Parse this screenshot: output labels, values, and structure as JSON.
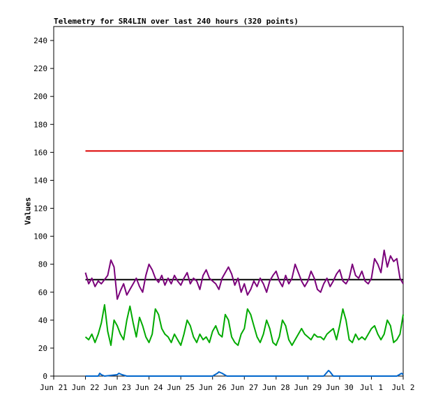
{
  "chart_data": {
    "type": "line",
    "title": "Telemetry for SR4LIN over last 240 hours (320 points)",
    "xlabel": "",
    "ylabel": "Values",
    "ylim": [
      0,
      250
    ],
    "xlim": [
      0,
      11
    ],
    "x_tick_labels": [
      "Jun 21",
      "Jun 22",
      "Jun 23",
      "Jun 24",
      "Jun 25",
      "Jun 26",
      "Jun 27",
      "Jun 28",
      "Jun 29",
      "Jun 30",
      "Jul 1",
      "Jul 2"
    ],
    "y_tick_values": [
      0,
      20,
      40,
      60,
      80,
      100,
      120,
      140,
      160,
      180,
      200,
      220,
      240
    ],
    "grid": false,
    "legend": "none",
    "series": [
      {
        "color": "#dd0000",
        "x": [
          1,
          11
        ],
        "y": [
          161,
          161
        ]
      },
      {
        "color": "#000000",
        "x": [
          1,
          11
        ],
        "y": [
          69,
          69
        ]
      },
      {
        "color": "#7a007a",
        "x": [
          1.0,
          1.1,
          1.2,
          1.3,
          1.4,
          1.5,
          1.6,
          1.7,
          1.8,
          1.9,
          2.0,
          2.1,
          2.2,
          2.3,
          2.4,
          2.5,
          2.6,
          2.7,
          2.8,
          2.9,
          3.0,
          3.1,
          3.2,
          3.3,
          3.4,
          3.5,
          3.6,
          3.7,
          3.8,
          3.9,
          4.0,
          4.1,
          4.2,
          4.3,
          4.4,
          4.5,
          4.6,
          4.7,
          4.8,
          4.9,
          5.0,
          5.1,
          5.2,
          5.3,
          5.4,
          5.5,
          5.6,
          5.7,
          5.8,
          5.9,
          6.0,
          6.1,
          6.2,
          6.3,
          6.4,
          6.5,
          6.6,
          6.7,
          6.8,
          6.9,
          7.0,
          7.1,
          7.2,
          7.3,
          7.4,
          7.5,
          7.6,
          7.7,
          7.8,
          7.9,
          8.0,
          8.1,
          8.2,
          8.3,
          8.4,
          8.5,
          8.6,
          8.7,
          8.8,
          8.9,
          9.0,
          9.1,
          9.2,
          9.3,
          9.4,
          9.5,
          9.6,
          9.7,
          9.8,
          9.9,
          10.0,
          10.1,
          10.2,
          10.3,
          10.4,
          10.5,
          10.6,
          10.7,
          10.8,
          10.9,
          11.0
        ],
        "y": [
          74,
          66,
          70,
          64,
          68,
          66,
          69,
          72,
          83,
          78,
          55,
          61,
          66,
          58,
          62,
          66,
          70,
          64,
          60,
          72,
          80,
          76,
          70,
          67,
          72,
          65,
          70,
          66,
          72,
          68,
          65,
          70,
          74,
          66,
          70,
          68,
          62,
          72,
          76,
          70,
          68,
          66,
          62,
          70,
          74,
          78,
          73,
          65,
          70,
          60,
          66,
          58,
          62,
          68,
          64,
          70,
          66,
          60,
          68,
          72,
          75,
          68,
          64,
          72,
          66,
          70,
          80,
          74,
          68,
          64,
          68,
          75,
          70,
          62,
          60,
          66,
          70,
          64,
          68,
          73,
          76,
          68,
          66,
          70,
          80,
          72,
          70,
          75,
          68,
          66,
          70,
          84,
          80,
          74,
          90,
          78,
          86,
          82,
          84,
          70,
          66
        ]
      },
      {
        "color": "#00aa00",
        "x": [
          1.0,
          1.1,
          1.2,
          1.3,
          1.4,
          1.5,
          1.6,
          1.7,
          1.8,
          1.9,
          2.0,
          2.1,
          2.2,
          2.3,
          2.4,
          2.5,
          2.6,
          2.7,
          2.8,
          2.9,
          3.0,
          3.1,
          3.2,
          3.3,
          3.4,
          3.5,
          3.6,
          3.7,
          3.8,
          3.9,
          4.0,
          4.1,
          4.2,
          4.3,
          4.4,
          4.5,
          4.6,
          4.7,
          4.8,
          4.9,
          5.0,
          5.1,
          5.2,
          5.3,
          5.4,
          5.5,
          5.6,
          5.7,
          5.8,
          5.9,
          6.0,
          6.1,
          6.2,
          6.3,
          6.4,
          6.5,
          6.6,
          6.7,
          6.8,
          6.9,
          7.0,
          7.1,
          7.2,
          7.3,
          7.4,
          7.5,
          7.6,
          7.7,
          7.8,
          7.9,
          8.0,
          8.1,
          8.2,
          8.3,
          8.4,
          8.5,
          8.6,
          8.7,
          8.8,
          8.9,
          9.0,
          9.1,
          9.2,
          9.3,
          9.4,
          9.5,
          9.6,
          9.7,
          9.8,
          9.9,
          10.0,
          10.1,
          10.2,
          10.3,
          10.4,
          10.5,
          10.6,
          10.7,
          10.8,
          10.9,
          11.0
        ],
        "y": [
          28,
          26,
          30,
          24,
          30,
          38,
          51,
          32,
          22,
          40,
          36,
          30,
          26,
          40,
          50,
          38,
          28,
          42,
          36,
          28,
          24,
          30,
          48,
          44,
          34,
          30,
          28,
          24,
          30,
          26,
          22,
          30,
          40,
          36,
          28,
          24,
          30,
          26,
          28,
          24,
          32,
          36,
          30,
          28,
          44,
          40,
          28,
          24,
          22,
          30,
          34,
          48,
          44,
          36,
          28,
          24,
          30,
          40,
          34,
          24,
          22,
          28,
          40,
          36,
          26,
          22,
          26,
          30,
          34,
          30,
          28,
          26,
          30,
          28,
          28,
          26,
          30,
          32,
          34,
          26,
          36,
          48,
          40,
          26,
          24,
          30,
          26,
          28,
          26,
          30,
          34,
          36,
          30,
          26,
          30,
          40,
          36,
          24,
          26,
          30,
          44
        ]
      },
      {
        "color": "#0066cc",
        "x": [
          1.0,
          1.4,
          1.45,
          1.5,
          1.6,
          2.0,
          2.05,
          2.15,
          2.3,
          3.0,
          4.0,
          4.5,
          5.0,
          5.15,
          5.2,
          5.3,
          5.45,
          6.0,
          7.0,
          7.5,
          8.0,
          8.5,
          8.65,
          8.7,
          8.8,
          9.0,
          10.0,
          10.8,
          10.95,
          11.0
        ],
        "y": [
          0,
          0,
          2,
          1,
          0,
          1,
          2,
          1,
          0,
          0,
          0,
          0,
          0,
          2,
          3,
          2,
          0,
          0,
          0,
          0,
          0,
          0,
          4,
          3,
          0,
          0,
          0,
          0,
          2,
          1
        ]
      }
    ]
  }
}
